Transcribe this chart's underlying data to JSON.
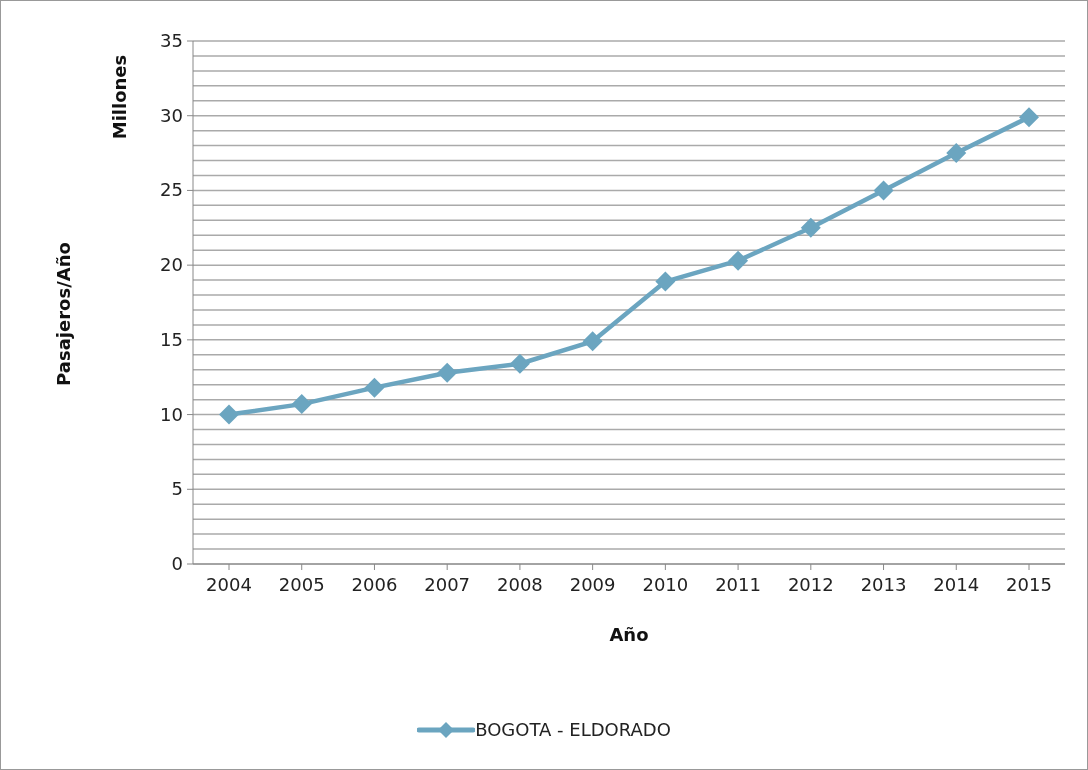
{
  "chart_data": {
    "type": "line",
    "xlabel": "Año",
    "ylabel": "Pasajeros/Año",
    "annotations": [
      "Millones"
    ],
    "categories": [
      "2004",
      "2005",
      "2006",
      "2007",
      "2008",
      "2009",
      "2010",
      "2011",
      "2012",
      "2013",
      "2014",
      "2015"
    ],
    "series": [
      {
        "name": "BOGOTA - ELDORADO",
        "color": "#6ba5c0",
        "values": [
          10.0,
          10.7,
          11.8,
          12.8,
          13.4,
          14.9,
          18.9,
          20.3,
          22.5,
          25.0,
          27.5,
          29.9
        ]
      }
    ],
    "ylim": [
      0,
      35
    ],
    "yticks": [
      0,
      {
        "value": 1,
        "label": null
      },
      {
        "value": 2,
        "label": null
      },
      {
        "value": 3,
        "label": null
      },
      {
        "value": 4,
        "label": null
      },
      5,
      {
        "value": 6,
        "label": null
      },
      {
        "value": 7,
        "label": null
      },
      {
        "value": 8,
        "label": null
      },
      {
        "value": 9,
        "label": null
      },
      10,
      {
        "value": 11,
        "label": null
      },
      {
        "value": 12,
        "label": null
      },
      {
        "value": 13,
        "label": null
      },
      {
        "value": 14,
        "label": null
      },
      15,
      {
        "value": 16,
        "label": null
      },
      {
        "value": 17,
        "label": null
      },
      {
        "value": 18,
        "label": null
      },
      {
        "value": 19,
        "label": null
      },
      20,
      {
        "value": 21,
        "label": null
      },
      {
        "value": 22,
        "label": null
      },
      {
        "value": 23,
        "label": null
      },
      {
        "value": 24,
        "label": null
      },
      25,
      {
        "value": 26,
        "label": null
      },
      {
        "value": 27,
        "label": null
      },
      {
        "value": 28,
        "label": null
      },
      {
        "value": 29,
        "label": null
      },
      30,
      {
        "value": 31,
        "label": null
      },
      {
        "value": 32,
        "label": null
      },
      {
        "value": 33,
        "label": null
      },
      {
        "value": 34,
        "label": null
      },
      35
    ],
    "grid": "y",
    "legend": "bottom",
    "marker": "diamond",
    "line_style": "solid"
  }
}
